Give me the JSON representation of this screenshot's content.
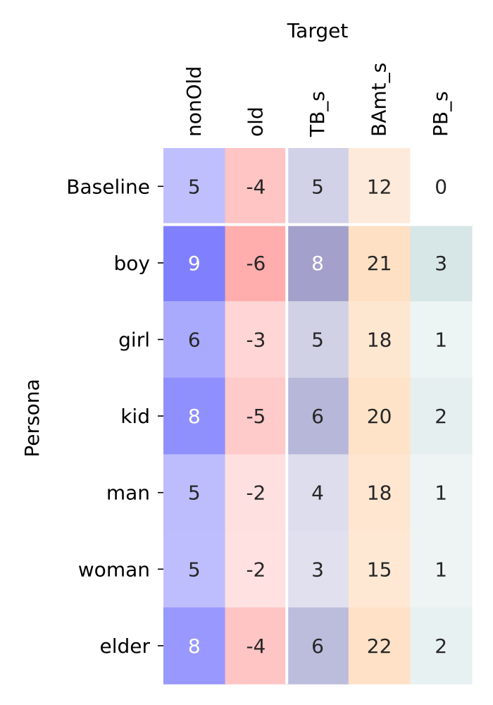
{
  "chart_data": {
    "type": "heatmap",
    "title": "",
    "xlabel": "Target",
    "ylabel": "Persona",
    "columns": [
      "nonOld",
      "old",
      "TB_s",
      "BAmt_s",
      "PB_s"
    ],
    "rows": [
      "Baseline",
      "boy",
      "girl",
      "kid",
      "man",
      "woman",
      "elder"
    ],
    "values": [
      [
        5,
        -4,
        5,
        12,
        0
      ],
      [
        9,
        -6,
        8,
        21,
        3
      ],
      [
        6,
        -3,
        5,
        18,
        1
      ],
      [
        8,
        -5,
        6,
        20,
        2
      ],
      [
        5,
        -2,
        4,
        18,
        1
      ],
      [
        5,
        -2,
        3,
        15,
        1
      ],
      [
        8,
        -4,
        6,
        22,
        2
      ]
    ],
    "cell_colors": [
      [
        "#bfbffe",
        "#ffc4c4",
        "#d1d1e8",
        "#feeada",
        "#ffffff"
      ],
      [
        "#8080fe",
        "#ffadad",
        "#a3a0cb",
        "#fee0c4",
        "#d7e6e6"
      ],
      [
        "#a9a9fe",
        "#ffd5d5",
        "#d1d1e5",
        "#fee7d0",
        "#edf4f4"
      ],
      [
        "#8f8ffe",
        "#ffcaca",
        "#b7b7da",
        "#fee3c9",
        "#e5efef"
      ],
      [
        "#bdbdfe",
        "#ffe0e0",
        "#dddded",
        "#fee6d0",
        "#eef4f4"
      ],
      [
        "#bebefe",
        "#ffe1e1",
        "#e0e0ef",
        "#fee8d4",
        "#eef4f4"
      ],
      [
        "#9898fe",
        "#ffc4c4",
        "#bcbcdc",
        "#fee1c6",
        "#e8f1f1"
      ]
    ],
    "text_colors": {
      "dark": "#262626",
      "light": "#ffffff"
    },
    "separators": {
      "after_row": "Baseline",
      "after_column": "old",
      "color": "#ffffff"
    }
  }
}
